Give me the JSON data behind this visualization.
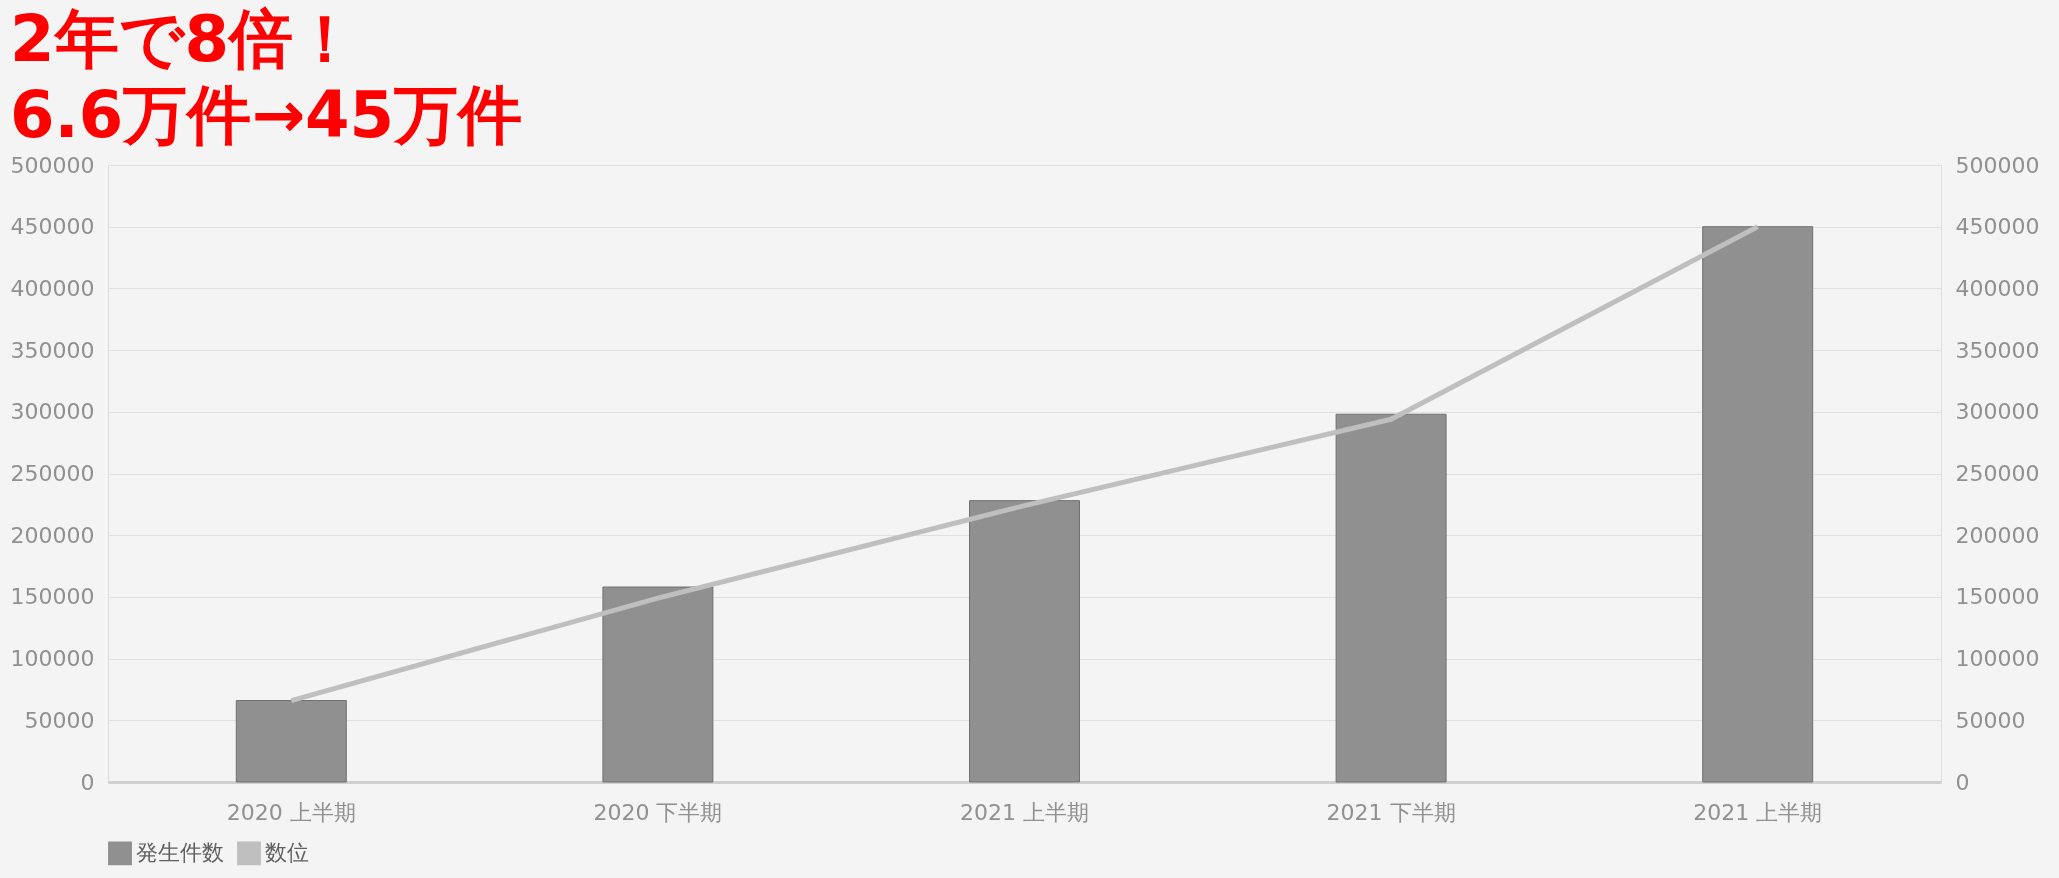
{
  "chart_data": {
    "type": "bar",
    "title": [
      "2年で8倍！",
      "6.6万件→45万件"
    ],
    "categories": [
      "2020 上半期",
      "2020 下半期",
      "2021 上半期",
      "2021 下半期",
      "2021 上半期"
    ],
    "series": [
      {
        "name": "発生件数",
        "color": "#909090",
        "values": [
          66000,
          158000,
          228000,
          298000,
          450000
        ]
      },
      {
        "name": "数位",
        "type": "line",
        "axis": "y2",
        "color": "#bfbfbf",
        "values": [
          66000,
          149000,
          224000,
          294000,
          450000
        ]
      }
    ],
    "ylim": [
      0,
      500000
    ],
    "yticks": [
      0,
      50000,
      100000,
      150000,
      200000,
      250000,
      300000,
      350000,
      400000,
      450000,
      500000
    ],
    "y2lim": [
      0,
      500000
    ],
    "y2ticks": [
      0,
      50000,
      100000,
      150000,
      200000,
      250000,
      300000,
      350000,
      400000,
      450000,
      500000
    ],
    "grid": "y",
    "legend": "bottom",
    "marker": "none"
  }
}
